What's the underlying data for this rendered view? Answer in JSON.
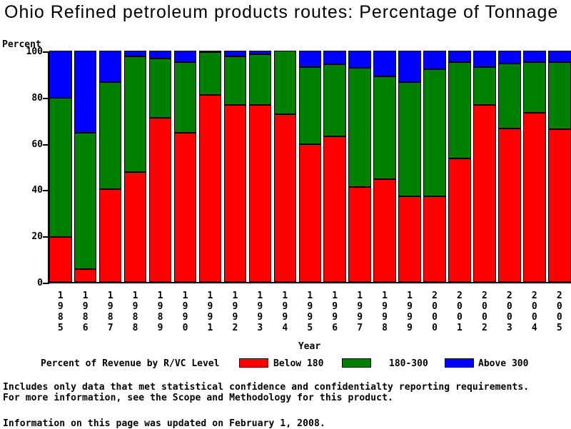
{
  "title": "Ohio Refined petroleum products routes: Percentage of Tonnage",
  "y_axis_title": "Percent",
  "x_axis_title": "Year",
  "legend": {
    "caption": "Percent of Revenue by R/VC Level",
    "items": [
      {
        "label": "Below 180",
        "color": "#ff0000"
      },
      {
        "label": "180-300",
        "color": "#008000"
      },
      {
        "label": "Above 300",
        "color": "#0000ff"
      }
    ]
  },
  "footnotes": [
    "Includes only data that met statistical confidence and confidentialty reporting requirements.",
    "For more information, see the Scope and Methodology for this product.",
    "Information on this page was updated on February 1, 2008."
  ],
  "chart_data": {
    "type": "bar",
    "stacked": true,
    "title": "Ohio Refined petroleum products routes: Percentage of Tonnage",
    "xlabel": "Year",
    "ylabel": "Percent",
    "ylim": [
      0,
      100
    ],
    "yticks": [
      0,
      20,
      40,
      60,
      80,
      100
    ],
    "grid": false,
    "legend_position": "bottom",
    "categories": [
      "1985",
      "1986",
      "1987",
      "1988",
      "1989",
      "1990",
      "1991",
      "1992",
      "1993",
      "1994",
      "1995",
      "1996",
      "1997",
      "1998",
      "1999",
      "2000",
      "2001",
      "2002",
      "2003",
      "2004",
      "2005"
    ],
    "series": [
      {
        "name": "Below 180",
        "color": "#ff0000",
        "values": [
          19.5,
          5.5,
          40,
          47.5,
          71,
          64.5,
          81,
          76.5,
          76.5,
          72.5,
          59.5,
          63,
          41,
          44.5,
          37,
          37,
          53.5,
          76.5,
          66.5,
          73,
          66
        ]
      },
      {
        "name": "180-300",
        "color": "#008000",
        "values": [
          60,
          59,
          46.5,
          50,
          25.5,
          30.5,
          18.5,
          21,
          22,
          27.5,
          33.5,
          31,
          51.5,
          44.5,
          49.5,
          55,
          41.5,
          16.5,
          28,
          22,
          29
        ]
      },
      {
        "name": "Above 300",
        "color": "#0000ff",
        "values": [
          20.5,
          35.5,
          13.5,
          2.5,
          3.5,
          5,
          0.5,
          2.5,
          1.5,
          0,
          7,
          6,
          7.5,
          11,
          13.5,
          8,
          5,
          7,
          5.5,
          5,
          5
        ]
      }
    ]
  }
}
